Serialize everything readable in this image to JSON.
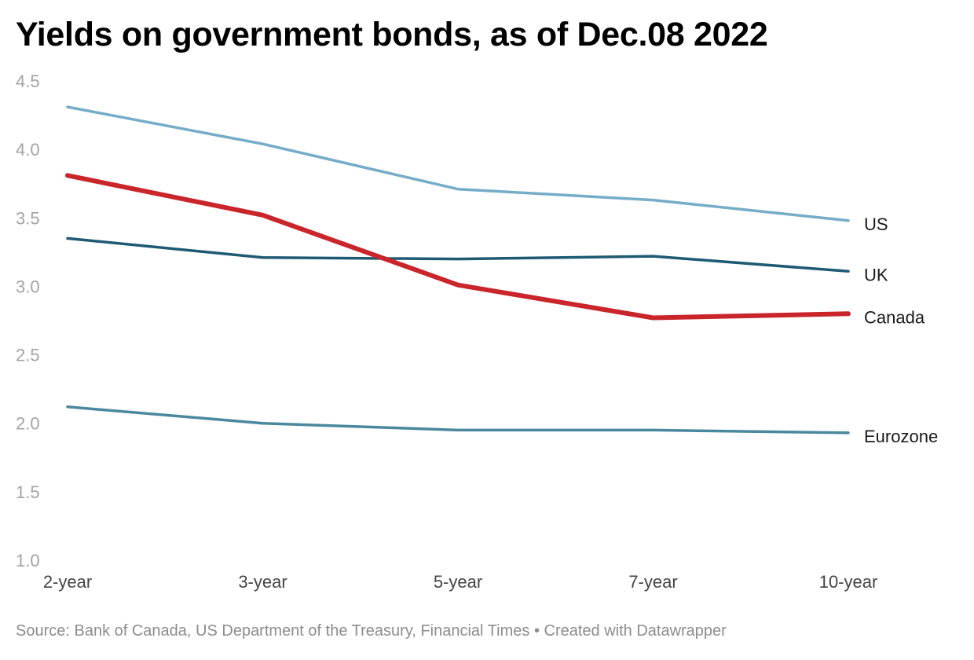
{
  "chart_data": {
    "type": "line",
    "title": "Yields on government bonds, as of Dec.08 2022",
    "categories": [
      "2-year",
      "3-year",
      "5-year",
      "7-year",
      "10-year"
    ],
    "ylim": [
      1.0,
      4.5
    ],
    "yticks": [
      "1.0",
      "1.5",
      "2.0",
      "2.5",
      "3.0",
      "3.5",
      "4.0",
      "4.5"
    ],
    "grid": false,
    "legend": "labels at line ends (right)",
    "series": [
      {
        "name": "US",
        "color": "#75acc8",
        "values": [
          4.31,
          4.04,
          3.71,
          3.63,
          3.48
        ]
      },
      {
        "name": "UK",
        "color": "#1e5a73",
        "values": [
          3.35,
          3.21,
          3.2,
          3.22,
          3.11
        ]
      },
      {
        "name": "Canada",
        "color": "#c9252b",
        "values": [
          3.81,
          3.52,
          3.01,
          2.77,
          2.8
        ]
      },
      {
        "name": "Eurozone",
        "color": "#4a889f",
        "values": [
          2.12,
          2.0,
          1.95,
          1.95,
          1.93
        ]
      }
    ],
    "source": "Source: Bank of Canada, US Department of the Treasury, Financial Times • Created with Datawrapper"
  }
}
